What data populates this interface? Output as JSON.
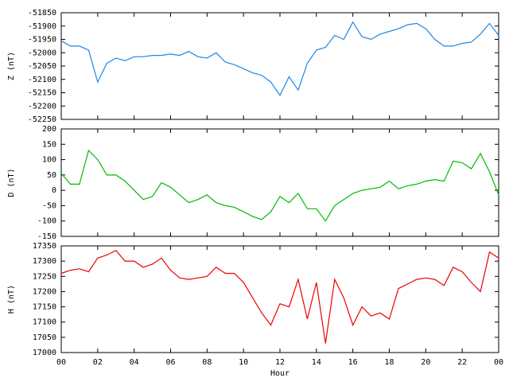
{
  "chart_data": [
    {
      "type": "line",
      "ylabel": "Z (nT)",
      "xlim": [
        0,
        24
      ],
      "ylim": [
        -52250,
        -51850
      ],
      "yticks": [
        -52250,
        -52200,
        -52150,
        -52100,
        -52050,
        -52000,
        -51950,
        -51900,
        -51850
      ],
      "x": [
        0,
        0.5,
        1,
        1.5,
        2,
        2.5,
        3,
        3.5,
        4,
        4.5,
        5,
        5.5,
        6,
        6.5,
        7,
        7.5,
        8,
        8.5,
        9,
        9.5,
        10,
        10.5,
        11,
        11.5,
        12,
        12.5,
        13,
        13.5,
        14,
        14.5,
        15,
        15.5,
        16,
        16.5,
        17,
        17.5,
        18,
        18.5,
        19,
        19.5,
        20,
        20.5,
        21,
        21.5,
        22,
        22.5,
        23,
        23.5,
        24
      ],
      "series": [
        {
          "color": "#1f86e6",
          "values": [
            -51955,
            -51975,
            -51975,
            -51990,
            -52110,
            -52040,
            -52020,
            -52030,
            -52015,
            -52015,
            -52010,
            -52010,
            -52005,
            -52010,
            -51995,
            -52015,
            -52020,
            -52000,
            -52035,
            -52045,
            -52060,
            -52075,
            -52085,
            -52110,
            -52160,
            -52090,
            -52140,
            -52040,
            -51990,
            -51980,
            -51935,
            -51950,
            -51885,
            -51940,
            -51950,
            -51930,
            -51920,
            -51910,
            -51895,
            -51890,
            -51910,
            -51950,
            -51975,
            -51975,
            -51965,
            -51960,
            -51930,
            -51890,
            -51935
          ]
        }
      ]
    },
    {
      "type": "line",
      "ylabel": "D (nT)",
      "xlim": [
        0,
        24
      ],
      "ylim": [
        -150,
        200
      ],
      "yticks": [
        -150,
        -100,
        -50,
        0,
        50,
        100,
        150,
        200
      ],
      "x": [
        0,
        0.5,
        1,
        1.5,
        2,
        2.5,
        3,
        3.5,
        4,
        4.5,
        5,
        5.5,
        6,
        6.5,
        7,
        7.5,
        8,
        8.5,
        9,
        9.5,
        10,
        10.5,
        11,
        11.5,
        12,
        12.5,
        13,
        13.5,
        14,
        14.5,
        15,
        15.5,
        16,
        16.5,
        17,
        17.5,
        18,
        18.5,
        19,
        19.5,
        20,
        20.5,
        21,
        21.5,
        22,
        22.5,
        23,
        23.5,
        24
      ],
      "series": [
        {
          "color": "#00bb00",
          "values": [
            55,
            20,
            20,
            130,
            100,
            50,
            50,
            30,
            0,
            -30,
            -20,
            25,
            10,
            -15,
            -40,
            -30,
            -15,
            -40,
            -50,
            -55,
            -70,
            -85,
            -95,
            -70,
            -20,
            -40,
            -10,
            -60,
            -60,
            -100,
            -50,
            -30,
            -10,
            0,
            5,
            10,
            30,
            5,
            15,
            20,
            30,
            35,
            30,
            95,
            90,
            70,
            120,
            60,
            -15
          ]
        }
      ]
    },
    {
      "type": "line",
      "ylabel": "H (nT)",
      "xlabel": "Hour",
      "xlim": [
        0,
        24
      ],
      "ylim": [
        17000,
        17350
      ],
      "yticks": [
        17000,
        17050,
        17100,
        17150,
        17200,
        17250,
        17300,
        17350
      ],
      "xticks": [
        {
          "value": 0,
          "label": "00"
        },
        {
          "value": 2,
          "label": "02"
        },
        {
          "value": 4,
          "label": "04"
        },
        {
          "value": 6,
          "label": "06"
        },
        {
          "value": 8,
          "label": "08"
        },
        10,
        12,
        14,
        16,
        18,
        20,
        22,
        {
          "value": 24,
          "label": "00"
        }
      ],
      "x": [
        0,
        0.5,
        1,
        1.5,
        2,
        2.5,
        3,
        3.5,
        4,
        4.5,
        5,
        5.5,
        6,
        6.5,
        7,
        7.5,
        8,
        8.5,
        9,
        9.5,
        10,
        10.5,
        11,
        11.5,
        12,
        12.5,
        13,
        13.5,
        14,
        14.5,
        15,
        15.5,
        16,
        16.5,
        17,
        17.5,
        18,
        18.5,
        19,
        19.5,
        20,
        20.5,
        21,
        21.5,
        22,
        22.5,
        23,
        23.5,
        24
      ],
      "series": [
        {
          "color": "#ee0000",
          "values": [
            17260,
            17270,
            17275,
            17265,
            17310,
            17320,
            17335,
            17300,
            17300,
            17280,
            17290,
            17310,
            17270,
            17245,
            17240,
            17245,
            17250,
            17280,
            17260,
            17260,
            17230,
            17180,
            17130,
            17090,
            17160,
            17150,
            17240,
            17110,
            17230,
            17030,
            17240,
            17180,
            17090,
            17150,
            17120,
            17130,
            17110,
            17210,
            17225,
            17240,
            17245,
            17240,
            17220,
            17280,
            17265,
            17230,
            17200,
            17330,
            17310
          ]
        }
      ]
    }
  ]
}
